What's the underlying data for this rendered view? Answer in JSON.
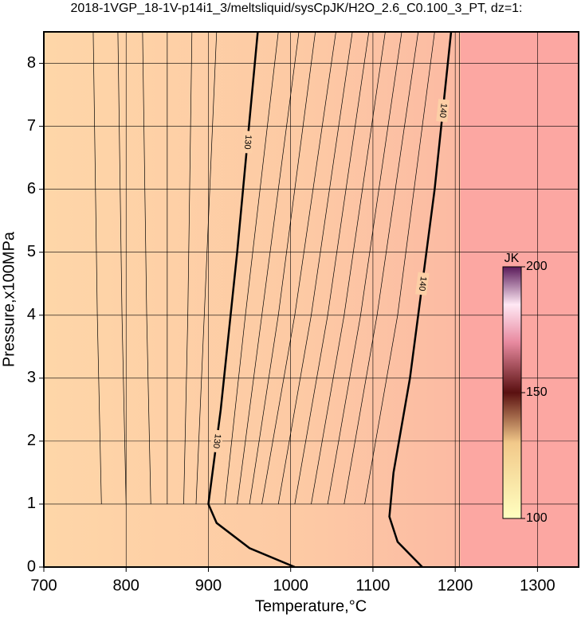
{
  "chart_data": {
    "type": "contour",
    "title": "2018-1VGP_18-1V-p14i1_3/meltsliquid/sysCpJK/H2O_2.6_C0.100_3_PT, dz=1:",
    "x_label": "Temperature,°C",
    "y_label": "Pressure,x100MPa",
    "xlim": [
      700,
      1350
    ],
    "ylim": [
      0,
      8.5
    ],
    "xticks": [
      700,
      800,
      900,
      1000,
      1100,
      1200,
      1300
    ],
    "yticks": [
      0,
      1,
      2,
      3,
      4,
      5,
      6,
      7,
      8
    ],
    "grid": true,
    "contours": [
      {
        "level": 130,
        "x": [
          1005,
          950,
          910,
          900,
          905,
          915,
          935,
          960
        ],
        "y": [
          0,
          0.3,
          0.7,
          1.0,
          1.5,
          2.5,
          5.0,
          8.5
        ]
      },
      {
        "level": 140,
        "x": [
          1160,
          1130,
          1120,
          1125,
          1145,
          1175,
          1195
        ],
        "y": [
          0,
          0.4,
          0.8,
          1.5,
          3.0,
          6.0,
          8.5
        ]
      }
    ],
    "thin_contours": [
      {
        "x": [
          770,
          765,
          760
        ],
        "y": [
          1,
          4,
          8.5
        ]
      },
      {
        "x": [
          800,
          795,
          790
        ],
        "y": [
          1,
          4,
          8.5
        ]
      },
      {
        "x": [
          830,
          825,
          820
        ],
        "y": [
          1,
          4,
          8.5
        ]
      },
      {
        "x": [
          850,
          850,
          850
        ],
        "y": [
          1,
          4,
          8.5
        ]
      },
      {
        "x": [
          870,
          875,
          880
        ],
        "y": [
          1,
          4,
          8.5
        ]
      },
      {
        "x": [
          885,
          895,
          910
        ],
        "y": [
          1,
          4,
          8.5
        ]
      },
      {
        "x": [
          920,
          945,
          985
        ],
        "y": [
          1,
          4,
          8.5
        ]
      },
      {
        "x": [
          935,
          965,
          1010
        ],
        "y": [
          1,
          4,
          8.5
        ]
      },
      {
        "x": [
          950,
          985,
          1030
        ],
        "y": [
          1,
          4,
          8.5
        ]
      },
      {
        "x": [
          965,
          1005,
          1055
        ],
        "y": [
          1,
          4,
          8.5
        ]
      },
      {
        "x": [
          985,
          1025,
          1075
        ],
        "y": [
          1,
          4,
          8.5
        ]
      },
      {
        "x": [
          1005,
          1045,
          1095
        ],
        "y": [
          1,
          4,
          8.5
        ]
      },
      {
        "x": [
          1025,
          1065,
          1115
        ],
        "y": [
          1,
          4,
          8.5
        ]
      },
      {
        "x": [
          1045,
          1085,
          1135
        ],
        "y": [
          1,
          4,
          8.5
        ]
      },
      {
        "x": [
          1065,
          1105,
          1155
        ],
        "y": [
          1,
          4,
          8.5
        ]
      },
      {
        "x": [
          1090,
          1130,
          1175
        ],
        "y": [
          1,
          4,
          8.5
        ]
      },
      {
        "x": [
          1205,
          1205,
          1205
        ],
        "y": [
          0,
          4,
          8.5
        ]
      }
    ],
    "colorbar": {
      "label": "JK",
      "lim": [
        100,
        200
      ],
      "ticks": [
        100,
        150,
        200
      ]
    }
  }
}
